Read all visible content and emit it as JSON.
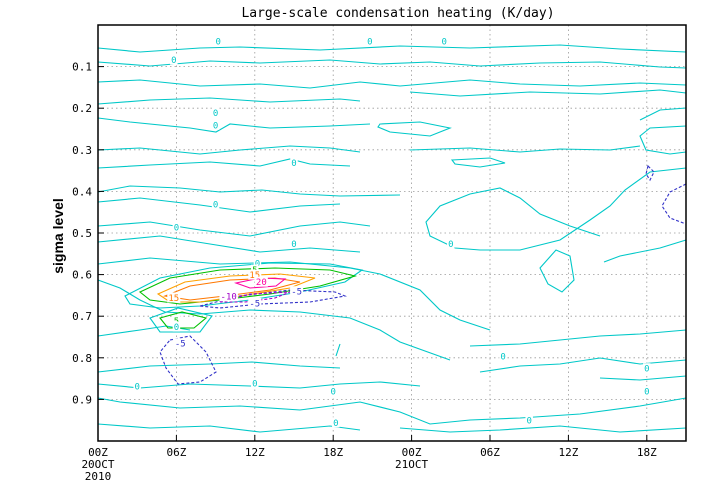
{
  "chart_data": {
    "type": "contour",
    "title": "Large-scale condensation heating (K/day)",
    "ylabel": "sigma level",
    "xlabel": "",
    "y_axis": {
      "ticks": [
        "0.1",
        "0.2",
        "0.3",
        "0.4",
        "0.5",
        "0.6",
        "0.7",
        "0.8",
        "0.9"
      ],
      "reversed": true,
      "ylim": [
        1.0,
        0.0
      ]
    },
    "x_axis": {
      "ticks": [
        {
          "t": 0,
          "label": "00Z",
          "sub": [
            "20OCT",
            "2010"
          ]
        },
        {
          "t": 6,
          "label": "06Z"
        },
        {
          "t": 12,
          "label": "12Z"
        },
        {
          "t": 18,
          "label": "18Z"
        },
        {
          "t": 24,
          "label": "00Z",
          "sub": [
            "21OCT"
          ]
        },
        {
          "t": 30,
          "label": "06Z"
        },
        {
          "t": 36,
          "label": "12Z"
        },
        {
          "t": 42,
          "label": "18Z"
        }
      ],
      "xlim_hours": [
        0,
        45
      ]
    },
    "grid": true,
    "colors": {
      "c0": "#00c8c8",
      "c5": "#00c000",
      "c10": "#ffa000",
      "c15": "#ff7800",
      "c20": "#ff00a0",
      "cm5": "#3232c8",
      "cm10": "#a000c8"
    },
    "contour_labels": [
      {
        "t": 9.2,
        "s": 0.038,
        "text": "0",
        "color": "#00c8c8"
      },
      {
        "t": 5.8,
        "s": 0.083,
        "text": "0",
        "color": "#00c8c8"
      },
      {
        "t": 20.8,
        "s": 0.038,
        "text": "0",
        "color": "#00c8c8"
      },
      {
        "t": 26.5,
        "s": 0.038,
        "text": "0",
        "color": "#00c8c8"
      },
      {
        "t": 9.0,
        "s": 0.21,
        "text": "0",
        "color": "#00c8c8"
      },
      {
        "t": 9.0,
        "s": 0.24,
        "text": "0",
        "color": "#00c8c8"
      },
      {
        "t": 15.0,
        "s": 0.33,
        "text": "0",
        "color": "#00c8c8"
      },
      {
        "t": 9.0,
        "s": 0.43,
        "text": "0",
        "color": "#00c8c8"
      },
      {
        "t": 6.0,
        "s": 0.485,
        "text": "0",
        "color": "#00c8c8"
      },
      {
        "t": 15.0,
        "s": 0.525,
        "text": "0",
        "color": "#00c8c8"
      },
      {
        "t": 27.0,
        "s": 0.525,
        "text": "0",
        "color": "#00c8c8"
      },
      {
        "t": 12.2,
        "s": 0.572,
        "text": "0",
        "color": "#00c8c8"
      },
      {
        "t": 12.0,
        "s": 0.588,
        "text": "5",
        "color": "#00c000"
      },
      {
        "t": 12.0,
        "s": 0.6,
        "text": "15",
        "color": "#ff7800"
      },
      {
        "t": 12.5,
        "s": 0.617,
        "text": "20",
        "color": "#ff00a0"
      },
      {
        "t": 5.8,
        "s": 0.655,
        "text": "15",
        "color": "#ff7800"
      },
      {
        "t": 15.2,
        "s": 0.64,
        "text": "-5",
        "color": "#3232c8"
      },
      {
        "t": 10.0,
        "s": 0.652,
        "text": "-10",
        "color": "#a000c8"
      },
      {
        "t": 12.0,
        "s": 0.668,
        "text": "-5",
        "color": "#3232c8"
      },
      {
        "t": 6.0,
        "s": 0.71,
        "text": "5",
        "color": "#00c000"
      },
      {
        "t": 6.0,
        "s": 0.725,
        "text": "0",
        "color": "#00c8c8"
      },
      {
        "t": 6.3,
        "s": 0.765,
        "text": "-5",
        "color": "#3232c8"
      },
      {
        "t": 31.0,
        "s": 0.796,
        "text": "0",
        "color": "#00c8c8"
      },
      {
        "t": 42.0,
        "s": 0.825,
        "text": "0",
        "color": "#00c8c8"
      },
      {
        "t": 3.0,
        "s": 0.868,
        "text": "0",
        "color": "#00c8c8"
      },
      {
        "t": 12.0,
        "s": 0.86,
        "text": "0",
        "color": "#00c8c8"
      },
      {
        "t": 18.0,
        "s": 0.88,
        "text": "0",
        "color": "#00c8c8"
      },
      {
        "t": 42.0,
        "s": 0.88,
        "text": "0",
        "color": "#00c8c8"
      },
      {
        "t": 18.2,
        "s": 0.955,
        "text": "0",
        "color": "#00c8c8"
      },
      {
        "t": 33.0,
        "s": 0.95,
        "text": "0",
        "color": "#00c8c8"
      }
    ]
  }
}
